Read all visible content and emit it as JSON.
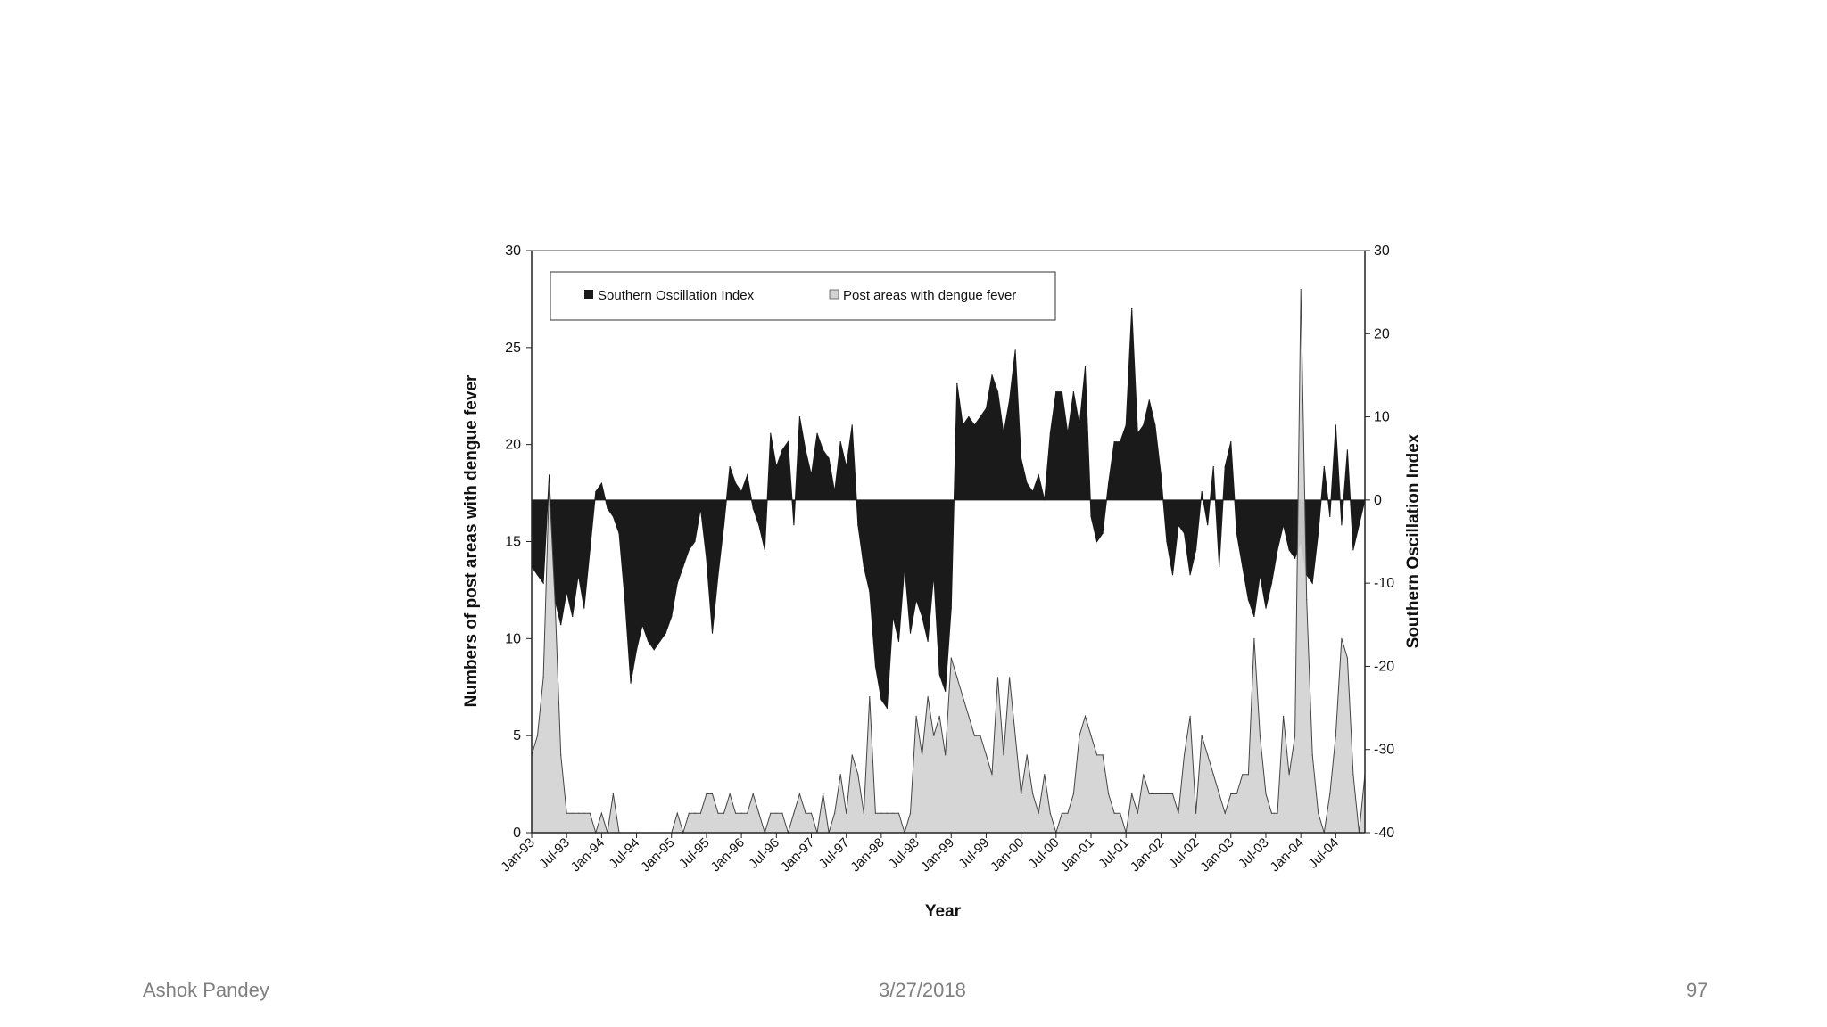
{
  "footer": {
    "author": "Ashok Pandey",
    "date": "3/27/2018",
    "page": "97"
  },
  "chart_data": {
    "type": "area",
    "xlabel": "Year",
    "ylabel_left": "Numbers of post areas with dengue fever",
    "ylabel_right": "Southern Oscillation Index",
    "ylim_left": [
      0,
      30
    ],
    "ylim_right": [
      -40,
      30
    ],
    "yticks_left": [
      "0",
      "5",
      "10",
      "15",
      "20",
      "25",
      "30"
    ],
    "yticks_right": [
      "-40",
      "-30",
      "-20",
      "-10",
      "0",
      "10",
      "20",
      "30"
    ],
    "x_tick_labels": [
      "Jan-93",
      "Jul-93",
      "Jan-94",
      "Jul-94",
      "Jan-95",
      "Jul-95",
      "Jan-96",
      "Jul-96",
      "Jan-97",
      "Jul-97",
      "Jan-98",
      "Jul-98",
      "Jan-99",
      "Jul-99",
      "Jan-00",
      "Jul-00",
      "Jan-01",
      "Jul-01",
      "Jan-02",
      "Jul-02",
      "Jan-03",
      "Jul-03",
      "Jan-04",
      "Jul-04"
    ],
    "legend": {
      "position": "top-left",
      "soi_label": "Southern Oscillation Index",
      "dengue_label": "Post areas with dengue fever"
    },
    "x_months": [
      0,
      1,
      2,
      3,
      4,
      5,
      6,
      7,
      8,
      9,
      10,
      11,
      12,
      13,
      14,
      15,
      16,
      17,
      18,
      19,
      20,
      21,
      22,
      23,
      24,
      25,
      26,
      27,
      28,
      29,
      30,
      31,
      32,
      33,
      34,
      35,
      36,
      37,
      38,
      39,
      40,
      41,
      42,
      43,
      44,
      45,
      46,
      47,
      48,
      49,
      50,
      51,
      52,
      53,
      54,
      55,
      56,
      57,
      58,
      59,
      60,
      61,
      62,
      63,
      64,
      65,
      66,
      67,
      68,
      69,
      70,
      71,
      72,
      73,
      74,
      75,
      76,
      77,
      78,
      79,
      80,
      81,
      82,
      83,
      84,
      85,
      86,
      87,
      88,
      89,
      90,
      91,
      92,
      93,
      94,
      95,
      96,
      97,
      98,
      99,
      100,
      101,
      102,
      103,
      104,
      105,
      106,
      107,
      108,
      109,
      110,
      111,
      112,
      113,
      114,
      115,
      116,
      117,
      118,
      119,
      120,
      121,
      122,
      123,
      124,
      125,
      126,
      127,
      128,
      129,
      130,
      131,
      132,
      133,
      134,
      135,
      136,
      137,
      138,
      139,
      140,
      141,
      142,
      143
    ],
    "series": [
      {
        "name": "Southern Oscillation Index",
        "axis": "right",
        "color": "#1a1a1a",
        "values": [
          -8,
          -9,
          -10,
          3,
          -12,
          -15,
          -11,
          -14,
          -9,
          -13,
          -6,
          1,
          2,
          -1,
          -2,
          -4,
          -12,
          -22,
          -18,
          -15,
          -17,
          -18,
          -17,
          -16,
          -14,
          -10,
          -8,
          -6,
          -5,
          -1,
          -7,
          -16,
          -9,
          -3,
          4,
          2,
          1,
          3,
          -1,
          -3,
          -6,
          8,
          4,
          6,
          7,
          -3,
          10,
          6,
          3,
          8,
          6,
          5,
          1,
          7,
          4,
          9,
          -3,
          -8,
          -11,
          -20,
          -24,
          -25,
          -14,
          -17,
          -8,
          -16,
          -12,
          -14,
          -17,
          -9,
          -21,
          -23,
          -13,
          14,
          9,
          10,
          9,
          10,
          11,
          15,
          13,
          8,
          12,
          18,
          5,
          2,
          1,
          3,
          0,
          8,
          13,
          13,
          8,
          13,
          9,
          16,
          -2,
          -5,
          -4,
          2,
          7,
          7,
          9,
          23,
          8,
          9,
          12,
          9,
          3,
          -5,
          -9,
          -3,
          -4,
          -9,
          -6,
          1,
          -3,
          4,
          -8,
          4,
          7,
          -4,
          -8,
          -12,
          -14,
          -9,
          -13,
          -10,
          -6,
          -3,
          -6,
          -7,
          -5,
          -9,
          -10,
          -4,
          4,
          -2,
          9,
          -3,
          6,
          -6
        ]
      },
      {
        "name": "Post areas with dengue fever",
        "axis": "left",
        "color": "#d3d3d3",
        "values": [
          4,
          5,
          8,
          18,
          12,
          4,
          1,
          1,
          1,
          1,
          1,
          0,
          1,
          0,
          2,
          0,
          0,
          0,
          0,
          0,
          0,
          0,
          0,
          0,
          0,
          1,
          0,
          1,
          1,
          1,
          2,
          2,
          1,
          1,
          2,
          1,
          1,
          1,
          2,
          1,
          0,
          1,
          1,
          1,
          0,
          1,
          2,
          1,
          1,
          0,
          2,
          0,
          1,
          3,
          1,
          4,
          3,
          1,
          7,
          1,
          1,
          1,
          1,
          1,
          0,
          1,
          6,
          4,
          7,
          5,
          6,
          4,
          9,
          8,
          7,
          6,
          5,
          5,
          4,
          3,
          8,
          4,
          8,
          5,
          2,
          4,
          2,
          1,
          3,
          1,
          0,
          1,
          1,
          2,
          5,
          6,
          5,
          4,
          4,
          2,
          1,
          1,
          0,
          2,
          1,
          3,
          2,
          2,
          2,
          2,
          2,
          1,
          4,
          6,
          1,
          5,
          4,
          3,
          2,
          1,
          2,
          2,
          3,
          3,
          10,
          5,
          2,
          1,
          1,
          6,
          3,
          5,
          28,
          12,
          4,
          1,
          0,
          2,
          5,
          10,
          9,
          3,
          0,
          3
        ]
      }
    ]
  }
}
